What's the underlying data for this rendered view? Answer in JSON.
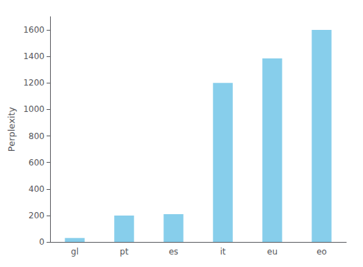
{
  "chart_data": {
    "type": "bar",
    "ylabel": "Perplexity",
    "categories": [
      "gl",
      "pt",
      "es",
      "it",
      "eu",
      "eo"
    ],
    "values": [
      30,
      200,
      210,
      1200,
      1385,
      1600
    ],
    "color": "#87CEEB",
    "ylim": [
      0,
      1700
    ],
    "yticks": [
      0,
      200,
      400,
      600,
      800,
      1000,
      1200,
      1400,
      1600
    ],
    "grid": false
  }
}
